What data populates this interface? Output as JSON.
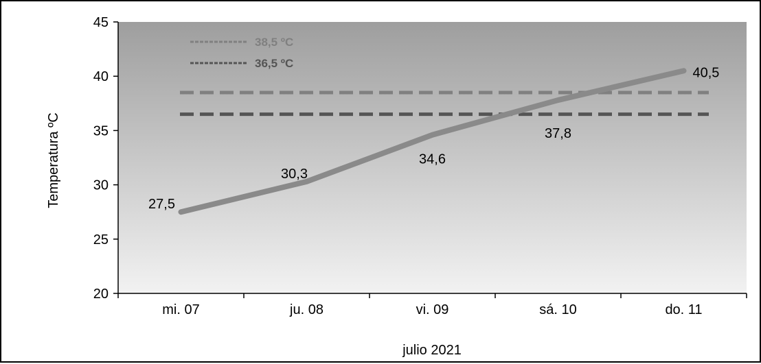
{
  "chart_data": {
    "type": "line",
    "categories": [
      "mi. 07",
      "ju. 08",
      "vi. 09",
      "sá. 10",
      "do. 11"
    ],
    "series": [
      {
        "values": [
          27.5,
          30.3,
          34.6,
          37.8,
          40.5
        ],
        "labels": [
          "27,5",
          "30,3",
          "34,6",
          "37,8",
          "40,5"
        ],
        "color": "#8a8a8a"
      }
    ],
    "reference_lines": [
      {
        "name": "38,5 ºC",
        "value": 38.5,
        "color": "#808080",
        "style": "dashed"
      },
      {
        "name": "36,5 ºC",
        "value": 36.5,
        "color": "#555555",
        "style": "dashed"
      }
    ],
    "title": "",
    "xlabel": "julio 2021",
    "ylabel": "Temperatura ºC",
    "ylim": [
      20,
      45
    ],
    "yticks": [
      20,
      25,
      30,
      35,
      40,
      45
    ],
    "grid": false,
    "legend_position": "top-left",
    "plot_background": "gradient-gray-dark-top-to-light-bottom"
  }
}
